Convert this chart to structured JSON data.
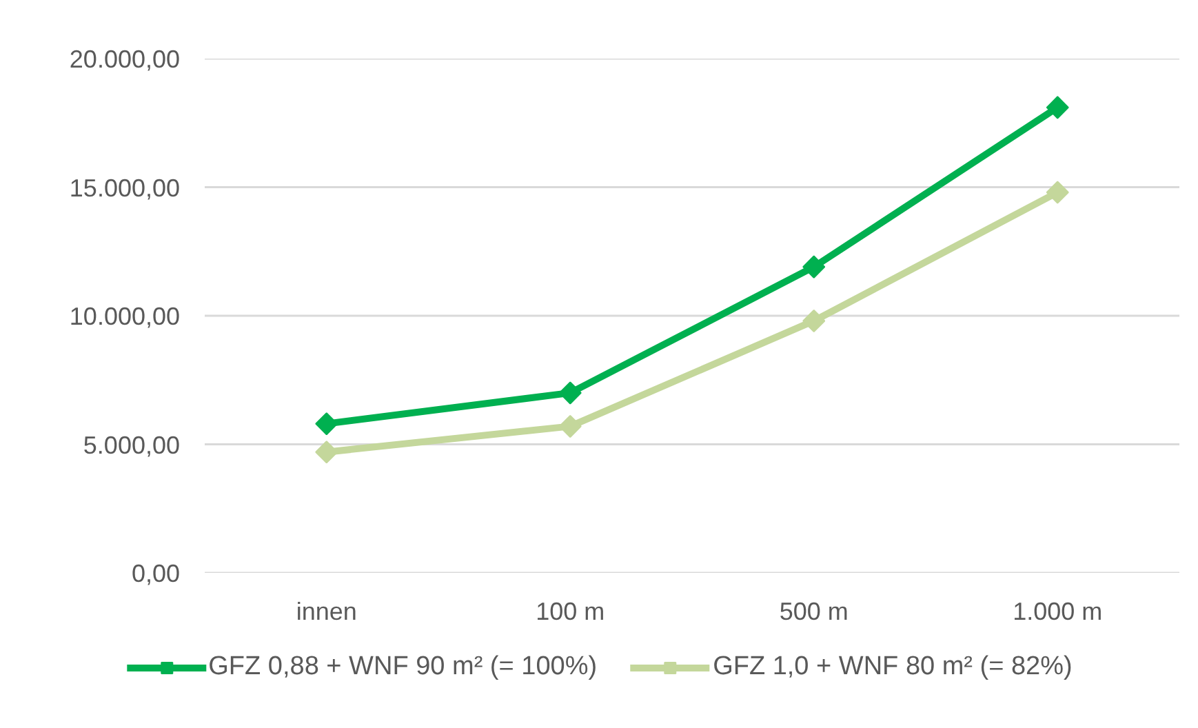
{
  "chart_data": {
    "type": "line",
    "categories": [
      "innen",
      "100 m",
      "500 m",
      "1.000 m"
    ],
    "series": [
      {
        "name": "GFZ 0,88 + WNF 90 m² (= 100%)",
        "color": "#00b050",
        "values": [
          5800,
          7000,
          11900,
          18100
        ]
      },
      {
        "name": "GFZ 1,0 + WNF 80 m² (= 82%)",
        "color": "#c4d79b",
        "values": [
          4700,
          5700,
          9800,
          14800
        ]
      }
    ],
    "ylim": [
      0,
      20000
    ],
    "yticks": [
      {
        "value": 0,
        "label": "0,00"
      },
      {
        "value": 5000,
        "label": "5.000,00"
      },
      {
        "value": 10000,
        "label": "10.000,00"
      },
      {
        "value": 15000,
        "label": "15.000,00"
      },
      {
        "value": 20000,
        "label": "20.000,00"
      }
    ],
    "grid": "y",
    "legend": "bottom",
    "marker": "diamond",
    "line_style": "solid"
  }
}
